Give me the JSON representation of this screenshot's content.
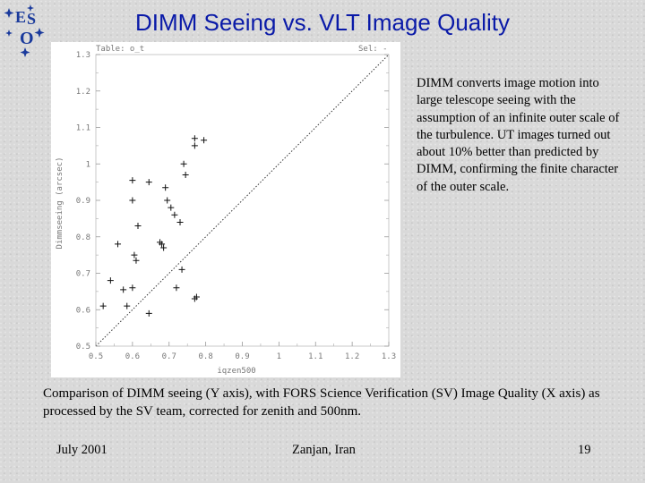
{
  "slide": {
    "title": "DIMM Seeing vs. VLT Image Quality",
    "side_text": "DIMM converts image motion into large telescope seeing with the assumption of an infinite outer scale of the turbulence. UT images turned out about 10% better than predicted by DIMM, confirming the finite character of the outer scale.",
    "caption": "Comparison of DIMM seeing (Y axis), with FORS Science Verification (SV) Image Quality (X axis) as processed by the SV team, corrected for zenith and 500nm.",
    "footer_left": "July 2001",
    "footer_center": "Zanjan, Iran",
    "footer_right": "19"
  },
  "logo": {
    "text": "ESO",
    "icon": "eso-logo-icon",
    "color": "#1a3a9c"
  },
  "chart_data": {
    "type": "scatter",
    "title_left": "Table: o_t",
    "title_right": "Sel: -",
    "xlabel": "iqzen500",
    "ylabel": "Dimmseeing (arcsec)",
    "xlim": [
      0.5,
      1.3
    ],
    "ylim": [
      0.5,
      1.3
    ],
    "x_ticks": [
      "0.5",
      "0.6",
      "0.7",
      "0.8",
      "0.9",
      "1",
      "1.1",
      "1.2",
      "1.3"
    ],
    "y_ticks": [
      "0.5",
      "0.6",
      "0.7",
      "0.8",
      "0.9",
      "1",
      "1.1",
      "1.2",
      "1.3"
    ],
    "reference_line": "y = x (dotted)",
    "points": [
      {
        "x": 0.575,
        "y": 0.655
      },
      {
        "x": 0.6,
        "y": 0.66
      },
      {
        "x": 0.585,
        "y": 0.61
      },
      {
        "x": 0.6,
        "y": 0.9
      },
      {
        "x": 0.6,
        "y": 0.955
      },
      {
        "x": 0.605,
        "y": 0.75
      },
      {
        "x": 0.61,
        "y": 0.735
      },
      {
        "x": 0.615,
        "y": 0.83
      },
      {
        "x": 0.645,
        "y": 0.95
      },
      {
        "x": 0.645,
        "y": 0.59
      },
      {
        "x": 0.675,
        "y": 0.785
      },
      {
        "x": 0.68,
        "y": 0.78
      },
      {
        "x": 0.685,
        "y": 0.77
      },
      {
        "x": 0.69,
        "y": 0.935
      },
      {
        "x": 0.695,
        "y": 0.9
      },
      {
        "x": 0.705,
        "y": 0.88
      },
      {
        "x": 0.715,
        "y": 0.86
      },
      {
        "x": 0.72,
        "y": 0.66
      },
      {
        "x": 0.735,
        "y": 0.71
      },
      {
        "x": 0.73,
        "y": 0.84
      },
      {
        "x": 0.74,
        "y": 1.0
      },
      {
        "x": 0.745,
        "y": 0.97
      },
      {
        "x": 0.77,
        "y": 1.07
      },
      {
        "x": 0.77,
        "y": 1.05
      },
      {
        "x": 0.77,
        "y": 0.63
      },
      {
        "x": 0.775,
        "y": 0.635
      },
      {
        "x": 0.795,
        "y": 1.065
      },
      {
        "x": 0.52,
        "y": 0.61
      },
      {
        "x": 0.54,
        "y": 0.68
      },
      {
        "x": 0.56,
        "y": 0.78
      }
    ]
  }
}
